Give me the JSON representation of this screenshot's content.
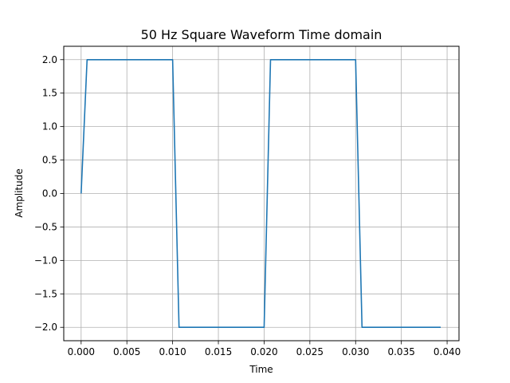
{
  "chart_data": {
    "type": "line",
    "title": "50 Hz Square Waveform Time domain",
    "xlabel": "Time",
    "ylabel": "Amplitude",
    "xlim": [
      -0.0019,
      0.0413
    ],
    "ylim": [
      -2.2,
      2.2
    ],
    "x_ticks": [
      0.0,
      0.005,
      0.01,
      0.015,
      0.02,
      0.025,
      0.03,
      0.035,
      0.04
    ],
    "x_tick_labels": [
      "0.000",
      "0.005",
      "0.010",
      "0.015",
      "0.020",
      "0.025",
      "0.030",
      "0.035",
      "0.040"
    ],
    "y_ticks": [
      2.0,
      1.5,
      1.0,
      0.5,
      0.0,
      -0.5,
      -1.0,
      -1.5,
      -2.0
    ],
    "y_tick_labels": [
      "2.0",
      "1.5",
      "1.0",
      "0.5",
      "0.0",
      "−0.5",
      "−1.0",
      "−1.5",
      "−2.0"
    ],
    "grid": true,
    "series": [
      {
        "color": "#1f77b4",
        "x": [
          0.0,
          0.00065,
          0.01,
          0.0107,
          0.02,
          0.0207,
          0.03,
          0.0307,
          0.0393
        ],
        "y": [
          0.0,
          2.0,
          2.0,
          -2.0,
          -2.0,
          2.0,
          2.0,
          -2.0,
          -2.0
        ]
      }
    ]
  }
}
